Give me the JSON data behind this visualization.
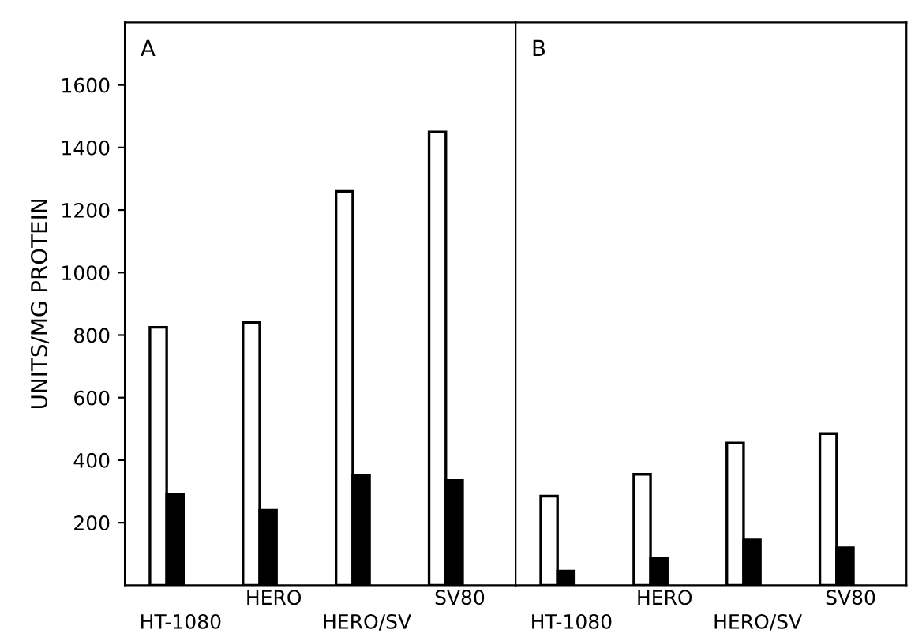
{
  "chart_data": [
    {
      "type": "bar",
      "ylabel": "UNITS/MG PROTEIN",
      "annotations": [
        "A"
      ],
      "categories": [
        "HT-1080",
        "HERO",
        "HERO/SV",
        "SV80"
      ],
      "series": [
        {
          "color": "#ffffff",
          "values": [
            825,
            840,
            1260,
            1450
          ]
        },
        {
          "color": "#000000",
          "values": [
            290,
            240,
            350,
            335
          ]
        }
      ],
      "ylim": [
        0,
        1800
      ],
      "yticks": [
        200,
        400,
        600,
        800,
        1000,
        1200,
        1400,
        1600
      ],
      "grid": false,
      "legend": false
    },
    {
      "type": "bar",
      "annotations": [
        "B"
      ],
      "categories": [
        "HT-1080",
        "HERO",
        "HERO/SV",
        "SV80"
      ],
      "series": [
        {
          "color": "#ffffff",
          "values": [
            285,
            355,
            455,
            485
          ]
        },
        {
          "color": "#000000",
          "values": [
            45,
            85,
            145,
            120
          ]
        }
      ],
      "ylim": [
        0,
        1800
      ],
      "yticks": [
        200,
        400,
        600,
        800,
        1000,
        1200,
        1400,
        1600
      ],
      "tick_labels": "x",
      "grid": false,
      "legend": false
    }
  ]
}
